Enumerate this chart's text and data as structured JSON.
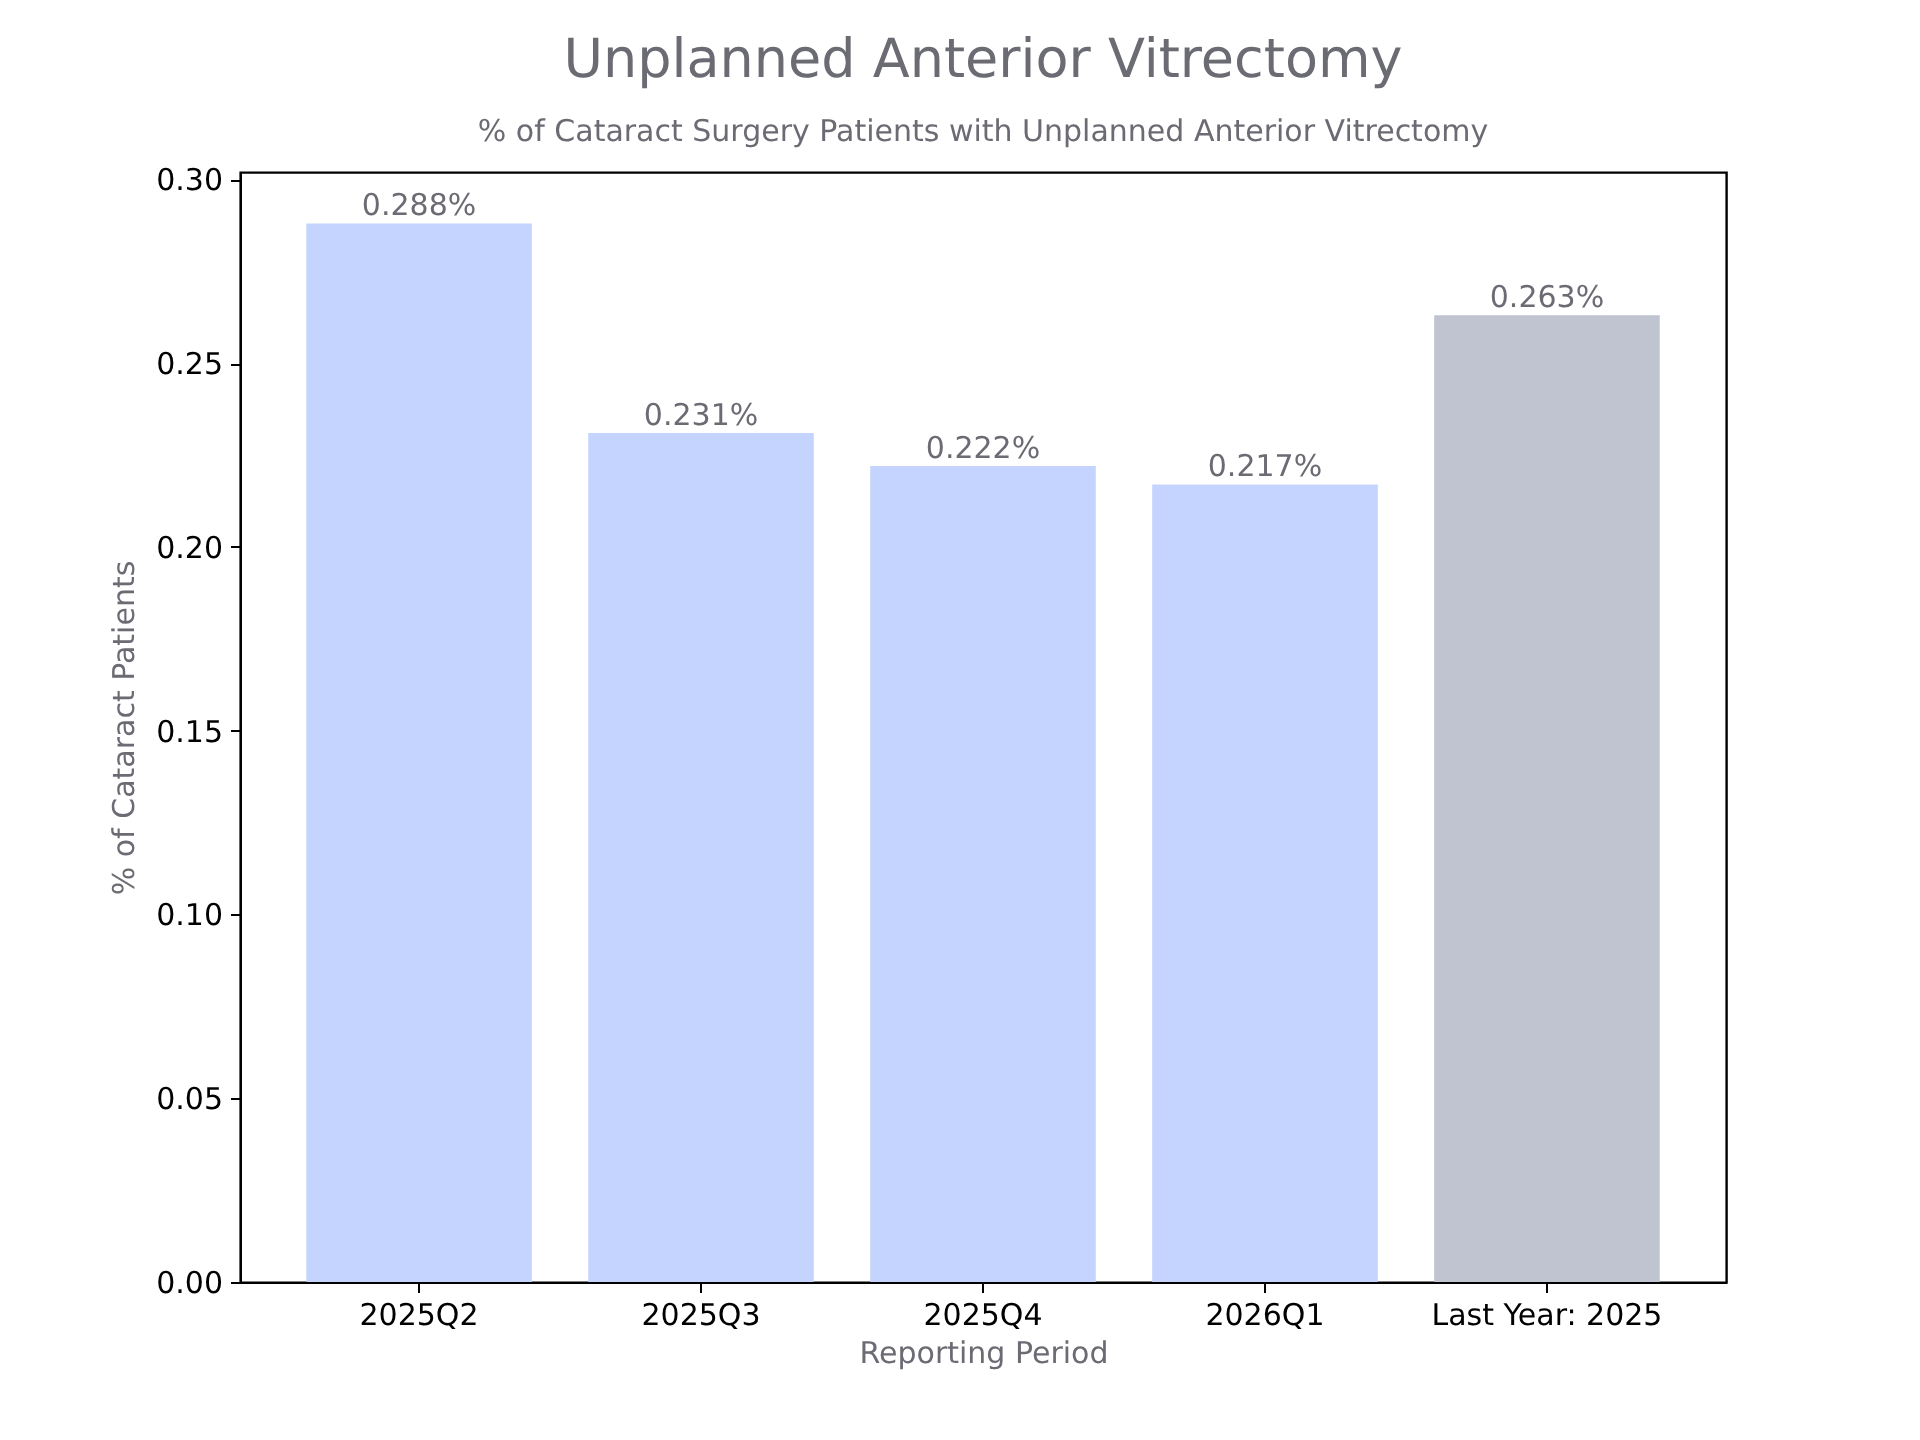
{
  "chart_data": {
    "type": "bar",
    "title": "Unplanned Anterior Vitrectomy",
    "subtitle": "% of Cataract Surgery Patients with Unplanned Anterior Vitrectomy",
    "xlabel": "Reporting Period",
    "ylabel": "% of Cataract Patients",
    "categories": [
      "2025Q2",
      "2025Q3",
      "2025Q4",
      "2026Q1",
      "Last Year: 2025"
    ],
    "values": [
      0.288,
      0.231,
      0.222,
      0.217,
      0.263
    ],
    "colors": [
      "#c5d4fe",
      "#c5d4fe",
      "#c5d4fe",
      "#c5d4fe",
      "#c0c4d0"
    ],
    "value_labels": [
      "0.288%",
      "0.231%",
      "0.222%",
      "0.217%",
      "0.263%"
    ],
    "ylim": [
      0,
      0.302
    ],
    "yticks": [
      {
        "value": 0,
        "label": "0.00"
      },
      {
        "value": 0.05,
        "label": "0.05"
      },
      {
        "value": 0.1,
        "label": "0.10"
      },
      {
        "value": 0.15,
        "label": "0.15"
      },
      {
        "value": 0.2,
        "label": "0.20"
      },
      {
        "value": 0.25,
        "label": "0.25"
      },
      {
        "value": 0.3,
        "label": "0.30"
      }
    ],
    "grid": false
  }
}
